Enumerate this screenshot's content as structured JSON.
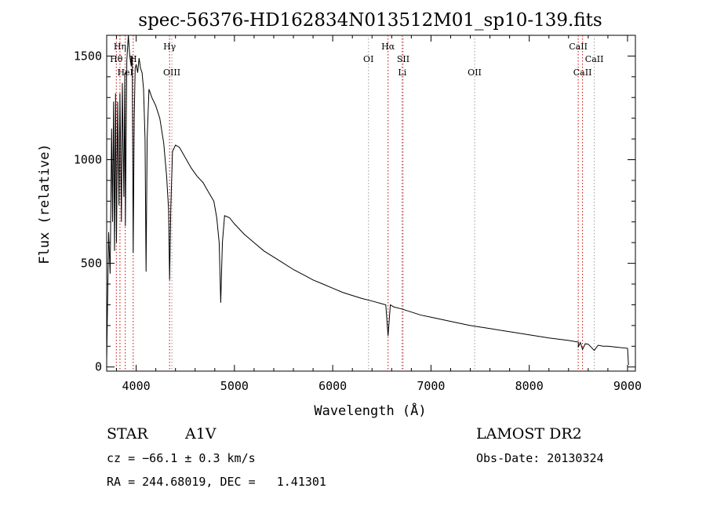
{
  "chart_data": {
    "type": "line",
    "title": "spec-56376-HD162834N013512M01_sp10-139.fits",
    "xlabel": "Wavelength (Å)",
    "ylabel": "Flux (relative)",
    "xlim": [
      3700,
      9080
    ],
    "ylim": [
      -20,
      1600
    ],
    "xticks": [
      4000,
      5000,
      6000,
      7000,
      8000,
      9000
    ],
    "yticks": [
      0,
      500,
      1000,
      1500
    ],
    "grid": false,
    "series": [
      {
        "color": "#000000",
        "points": [
          [
            3700,
            30
          ],
          [
            3720,
            650
          ],
          [
            3735,
            450
          ],
          [
            3750,
            1150
          ],
          [
            3760,
            700
          ],
          [
            3770,
            1280
          ],
          [
            3780,
            560
          ],
          [
            3790,
            1320
          ],
          [
            3800,
            600
          ],
          [
            3812,
            1280
          ],
          [
            3825,
            780
          ],
          [
            3835,
            1320
          ],
          [
            3850,
            700
          ],
          [
            3860,
            1370
          ],
          [
            3875,
            820
          ],
          [
            3885,
            1420
          ],
          [
            3890,
            680
          ],
          [
            3905,
            1480
          ],
          [
            3920,
            1600
          ],
          [
            3935,
            1500
          ],
          [
            3950,
            1450
          ],
          [
            3960,
            1500
          ],
          [
            3970,
            550
          ],
          [
            3980,
            1200
          ],
          [
            3990,
            1440
          ],
          [
            4000,
            1460
          ],
          [
            4015,
            1420
          ],
          [
            4030,
            1490
          ],
          [
            4045,
            1440
          ],
          [
            4060,
            1420
          ],
          [
            4075,
            1340
          ],
          [
            4090,
            1100
          ],
          [
            4101,
            460
          ],
          [
            4112,
            1100
          ],
          [
            4130,
            1340
          ],
          [
            4160,
            1300
          ],
          [
            4200,
            1260
          ],
          [
            4240,
            1200
          ],
          [
            4280,
            1080
          ],
          [
            4310,
            920
          ],
          [
            4330,
            760
          ],
          [
            4340,
            420
          ],
          [
            4352,
            760
          ],
          [
            4370,
            1040
          ],
          [
            4400,
            1070
          ],
          [
            4440,
            1060
          ],
          [
            4500,
            1010
          ],
          [
            4560,
            960
          ],
          [
            4620,
            920
          ],
          [
            4680,
            890
          ],
          [
            4740,
            840
          ],
          [
            4790,
            800
          ],
          [
            4820,
            720
          ],
          [
            4845,
            600
          ],
          [
            4861,
            310
          ],
          [
            4877,
            600
          ],
          [
            4900,
            730
          ],
          [
            4950,
            720
          ],
          [
            5000,
            690
          ],
          [
            5100,
            640
          ],
          [
            5200,
            600
          ],
          [
            5300,
            560
          ],
          [
            5400,
            530
          ],
          [
            5500,
            500
          ],
          [
            5600,
            470
          ],
          [
            5700,
            445
          ],
          [
            5800,
            420
          ],
          [
            5900,
            400
          ],
          [
            6000,
            380
          ],
          [
            6100,
            360
          ],
          [
            6200,
            345
          ],
          [
            6300,
            330
          ],
          [
            6400,
            318
          ],
          [
            6500,
            305
          ],
          [
            6540,
            300
          ],
          [
            6563,
            150
          ],
          [
            6586,
            300
          ],
          [
            6620,
            290
          ],
          [
            6700,
            280
          ],
          [
            6800,
            265
          ],
          [
            6900,
            250
          ],
          [
            7000,
            240
          ],
          [
            7200,
            220
          ],
          [
            7400,
            200
          ],
          [
            7600,
            185
          ],
          [
            7800,
            170
          ],
          [
            8000,
            155
          ],
          [
            8200,
            140
          ],
          [
            8400,
            128
          ],
          [
            8500,
            120
          ],
          [
            8498,
            95
          ],
          [
            8520,
            118
          ],
          [
            8542,
            85
          ],
          [
            8570,
            112
          ],
          [
            8600,
            110
          ],
          [
            8662,
            80
          ],
          [
            8700,
            105
          ],
          [
            8750,
            100
          ],
          [
            8800,
            100
          ],
          [
            8900,
            95
          ],
          [
            9000,
            90
          ],
          [
            9010,
            10
          ]
        ]
      }
    ],
    "line_markers": [
      {
        "label": "Hη",
        "x": 3835,
        "row": 1,
        "color": "#000000"
      },
      {
        "label": "Hθ",
        "x": 3798,
        "row": 2,
        "color": "#000000"
      },
      {
        "label": "HeI",
        "x": 3889,
        "row": 3,
        "color": "#000000"
      },
      {
        "label": "H",
        "x": 3970,
        "row": 2,
        "color": "#000000"
      },
      {
        "label": "Hγ",
        "x": 4340,
        "row": 1,
        "color": "#000000"
      },
      {
        "label": "OIII",
        "x": 4363,
        "row": 3,
        "color": "#000000"
      },
      {
        "label": "OI",
        "x": 6364,
        "row": 2,
        "color": "#000000"
      },
      {
        "label": "Hα",
        "x": 6563,
        "row": 1,
        "color": "#000000"
      },
      {
        "label": "SII",
        "x": 6717,
        "row": 2,
        "color": "#000000"
      },
      {
        "label": "Li",
        "x": 6708,
        "row": 3,
        "color": "#000000"
      },
      {
        "label": "OII",
        "x": 7444,
        "row": 3,
        "color": "#000000"
      },
      {
        "label": "CaII",
        "x": 8498,
        "row": 1,
        "color": "#000000"
      },
      {
        "label": "CaII",
        "x": 8662,
        "row": 2,
        "color": "#000000"
      },
      {
        "label": "CaII",
        "x": 8542,
        "row": 3,
        "color": "#000000"
      }
    ],
    "dotted_lines": [
      {
        "x": 3798,
        "color": "#cc0000"
      },
      {
        "x": 3835,
        "color": "#cc0000"
      },
      {
        "x": 3889,
        "color": "#cc0000"
      },
      {
        "x": 3970,
        "color": "#cc0000"
      },
      {
        "x": 4340,
        "color": "#cc0000"
      },
      {
        "x": 4363,
        "color": "#999999"
      },
      {
        "x": 6364,
        "color": "#999999"
      },
      {
        "x": 6563,
        "color": "#cc0000"
      },
      {
        "x": 6708,
        "color": "#cc0000"
      },
      {
        "x": 6717,
        "color": "#999999"
      },
      {
        "x": 7444,
        "color": "#999999"
      },
      {
        "x": 8498,
        "color": "#cc0000"
      },
      {
        "x": 8542,
        "color": "#cc0000"
      },
      {
        "x": 8662,
        "color": "#999999"
      }
    ]
  },
  "info": {
    "object_type": "STAR",
    "spectral_class": "A1V",
    "survey": "LAMOST DR2",
    "cz_line": "cz = −66.1 ± 0.3 km/s",
    "obs_date_line": "Obs-Date: 20130324",
    "coords_line": "RA = 244.68019, DEC =   1.41301"
  }
}
